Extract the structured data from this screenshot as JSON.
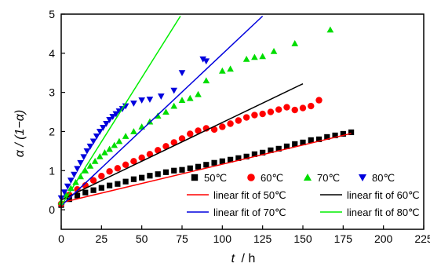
{
  "chart_data": {
    "type": "scatter",
    "xlabel_var": "t",
    "xlabel_unit": "/ h",
    "ylabel": "α / (1−α)",
    "xlim": [
      0,
      225
    ],
    "ylim": [
      -0.5,
      5
    ],
    "xticks": [
      0,
      25,
      50,
      75,
      100,
      125,
      150,
      175,
      200,
      225
    ],
    "yticks": [
      0,
      1,
      2,
      3,
      4,
      5
    ],
    "grid": false,
    "legend_position": "bottom-right",
    "series": [
      {
        "name": "50℃",
        "marker": "square",
        "color": "#000000",
        "x": [
          0,
          5,
          10,
          15,
          20,
          25,
          30,
          35,
          40,
          45,
          50,
          55,
          60,
          65,
          70,
          75,
          80,
          85,
          90,
          95,
          100,
          105,
          110,
          115,
          120,
          125,
          130,
          135,
          140,
          145,
          150,
          155,
          160,
          165,
          170,
          175,
          180
        ],
        "y": [
          0.12,
          0.27,
          0.36,
          0.44,
          0.5,
          0.56,
          0.62,
          0.66,
          0.72,
          0.78,
          0.82,
          0.87,
          0.91,
          0.96,
          1.0,
          1.02,
          1.06,
          1.1,
          1.15,
          1.2,
          1.24,
          1.28,
          1.32,
          1.36,
          1.42,
          1.46,
          1.52,
          1.56,
          1.62,
          1.68,
          1.72,
          1.78,
          1.8,
          1.86,
          1.9,
          1.94,
          1.98
        ]
      },
      {
        "name": "60℃",
        "marker": "circle",
        "color": "#ff0000",
        "x": [
          0,
          5,
          10,
          15,
          20,
          25,
          30,
          35,
          40,
          45,
          50,
          55,
          60,
          65,
          70,
          75,
          80,
          85,
          90,
          95,
          100,
          105,
          110,
          115,
          120,
          125,
          130,
          135,
          140,
          145,
          150,
          155,
          160
        ],
        "y": [
          0.15,
          0.38,
          0.52,
          0.62,
          0.75,
          0.86,
          0.98,
          1.06,
          1.15,
          1.24,
          1.33,
          1.42,
          1.52,
          1.62,
          1.72,
          1.82,
          1.94,
          2.02,
          2.08,
          2.05,
          2.12,
          2.2,
          2.28,
          2.36,
          2.42,
          2.45,
          2.5,
          2.56,
          2.62,
          2.55,
          2.6,
          2.65,
          2.8
        ]
      },
      {
        "name": "70℃",
        "marker": "triangle-up",
        "color": "#00dd00",
        "x": [
          0,
          3,
          6,
          9,
          12,
          15,
          18,
          21,
          24,
          27,
          30,
          33,
          36,
          40,
          45,
          50,
          55,
          60,
          65,
          70,
          75,
          80,
          85,
          90,
          100,
          105,
          115,
          120,
          125,
          132,
          145,
          167
        ],
        "y": [
          0.2,
          0.38,
          0.55,
          0.7,
          0.85,
          1.0,
          1.12,
          1.24,
          1.36,
          1.46,
          1.55,
          1.65,
          1.75,
          1.88,
          2.0,
          2.12,
          2.25,
          2.4,
          2.5,
          2.65,
          2.8,
          2.85,
          2.95,
          3.3,
          3.55,
          3.6,
          3.85,
          3.9,
          3.92,
          4.05,
          4.25,
          4.6
        ]
      },
      {
        "name": "80℃",
        "marker": "triangle-down",
        "color": "#0000dd",
        "x": [
          0,
          2,
          4,
          6,
          8,
          10,
          12,
          14,
          16,
          18,
          20,
          22,
          24,
          26,
          28,
          30,
          32,
          34,
          36,
          38,
          40,
          45,
          50,
          55,
          62,
          70,
          75,
          88,
          90
        ],
        "y": [
          0.3,
          0.45,
          0.6,
          0.75,
          0.9,
          1.05,
          1.2,
          1.35,
          1.5,
          1.62,
          1.75,
          1.88,
          2.0,
          2.1,
          2.2,
          2.3,
          2.38,
          2.45,
          2.52,
          2.58,
          2.65,
          2.72,
          2.8,
          2.82,
          2.9,
          3.05,
          3.5,
          3.85,
          3.8
        ]
      }
    ],
    "fits": [
      {
        "name": "linear fit of 50℃",
        "color": "#ff0000",
        "x": [
          0,
          180
        ],
        "y": [
          0.18,
          1.95
        ]
      },
      {
        "name": "linear fit of 60℃",
        "color": "#000000",
        "x": [
          0,
          150
        ],
        "y": [
          0.25,
          3.22
        ]
      },
      {
        "name": "linear fit of 70℃",
        "color": "#0000dd",
        "x": [
          0,
          125
        ],
        "y": [
          0.1,
          4.95
        ]
      },
      {
        "name": "linear fit of 80℃",
        "color": "#00ee00",
        "x": [
          0,
          74
        ],
        "y": [
          0.1,
          4.95
        ]
      }
    ]
  }
}
